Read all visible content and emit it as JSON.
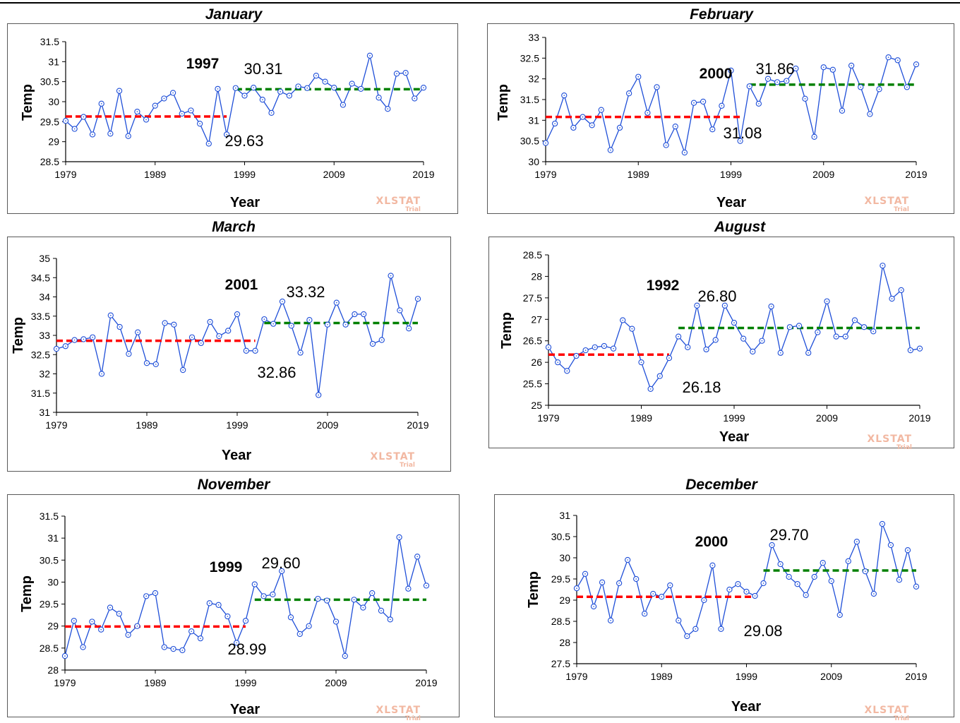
{
  "watermark": {
    "brand": "XLSTAT",
    "sub": "Trial"
  },
  "charts": [
    {
      "title": "January",
      "xlabel": "Year",
      "ylabel": "Temp",
      "xticks": [
        "1979",
        "1989",
        "1999",
        "2009",
        "2019"
      ],
      "yticks": [
        "28.5",
        "29",
        "29.5",
        "30",
        "30.5",
        "31",
        "31.5"
      ],
      "ylim": [
        28.5,
        31.5
      ],
      "change_year": "1997",
      "before_mean": 29.63,
      "after_mean": 30.31,
      "before_mean_label": "29.63",
      "after_mean_label": "30.31",
      "before_span": [
        1979,
        1997
      ],
      "after_span": [
        1998,
        2019
      ],
      "values": [
        29.52,
        29.32,
        29.62,
        29.18,
        29.95,
        29.2,
        30.27,
        29.14,
        29.75,
        29.55,
        29.9,
        30.08,
        30.22,
        29.7,
        29.78,
        29.45,
        28.95,
        30.32,
        29.18,
        30.34,
        30.15,
        30.35,
        30.05,
        29.72,
        30.25,
        30.15,
        30.38,
        30.34,
        30.65,
        30.5,
        30.35,
        29.92,
        30.45,
        30.32,
        31.15,
        30.1,
        29.82,
        30.7,
        30.72,
        30.08,
        30.35
      ]
    },
    {
      "title": "February",
      "xlabel": "Year",
      "ylabel": "Temp",
      "xticks": [
        "1979",
        "1989",
        "1999",
        "2009",
        "2019"
      ],
      "yticks": [
        "30",
        "30.5",
        "31",
        "31.5",
        "32",
        "32.5",
        "33"
      ],
      "ylim": [
        30,
        33
      ],
      "change_year": "2000",
      "before_mean": 31.08,
      "after_mean": 31.86,
      "before_mean_label": "31.08",
      "after_mean_label": "31.86",
      "before_span": [
        1979,
        2000
      ],
      "after_span": [
        2001,
        2019
      ],
      "values": [
        30.45,
        30.92,
        31.6,
        30.82,
        31.08,
        30.88,
        31.25,
        30.28,
        30.82,
        31.65,
        32.05,
        31.18,
        31.8,
        30.4,
        30.85,
        30.22,
        31.42,
        31.45,
        30.78,
        31.35,
        32.2,
        30.5,
        31.82,
        31.4,
        32.0,
        31.92,
        31.95,
        32.25,
        31.52,
        30.6,
        32.28,
        32.22,
        31.23,
        32.32,
        31.8,
        31.15,
        31.75,
        32.52,
        32.45,
        31.8,
        32.35
      ]
    },
    {
      "title": "March",
      "xlabel": "Year",
      "ylabel": "Temp",
      "xticks": [
        "1979",
        "1989",
        "1999",
        "2009",
        "2019"
      ],
      "yticks": [
        "31",
        "31.5",
        "32",
        "32.5",
        "33",
        "33.5",
        "34",
        "34.5",
        "35"
      ],
      "ylim": [
        31,
        35
      ],
      "change_year": "2001",
      "before_mean": 32.86,
      "after_mean": 33.32,
      "before_mean_label": "32.86",
      "after_mean_label": "33.32",
      "before_span": [
        1979,
        2001
      ],
      "after_span": [
        2002,
        2019
      ],
      "values": [
        32.65,
        32.72,
        32.88,
        32.9,
        32.95,
        32.0,
        33.52,
        33.22,
        32.52,
        33.08,
        32.28,
        32.25,
        33.32,
        33.28,
        32.1,
        32.95,
        32.8,
        33.35,
        32.98,
        33.12,
        33.55,
        32.6,
        32.6,
        33.42,
        33.3,
        33.88,
        33.25,
        32.55,
        33.4,
        31.45,
        33.28,
        33.85,
        33.28,
        33.55,
        33.55,
        32.78,
        32.88,
        34.55,
        33.65,
        33.18,
        33.95
      ]
    },
    {
      "title": "August",
      "xlabel": "Year",
      "ylabel": "Temp",
      "xticks": [
        "1979",
        "1989",
        "1999",
        "2009",
        "2019"
      ],
      "yticks": [
        "25",
        "25.5",
        "26",
        "26.5",
        "27",
        "27.5",
        "28",
        "28.5"
      ],
      "ylim": [
        25,
        28.5
      ],
      "change_year": "1992",
      "before_mean": 26.18,
      "after_mean": 26.8,
      "before_mean_label": "26.18",
      "after_mean_label": "26.80",
      "before_span": [
        1979,
        1992
      ],
      "after_span": [
        1993,
        2019
      ],
      "values": [
        26.35,
        26.0,
        25.8,
        26.15,
        26.28,
        26.35,
        26.38,
        26.32,
        26.98,
        26.78,
        26.0,
        25.38,
        25.68,
        26.1,
        26.6,
        26.35,
        27.32,
        26.3,
        26.52,
        27.32,
        26.92,
        26.55,
        26.25,
        26.5,
        27.3,
        26.22,
        26.82,
        26.85,
        26.22,
        26.7,
        27.42,
        26.6,
        26.6,
        26.98,
        26.82,
        26.72,
        28.25,
        27.48,
        27.68,
        26.28,
        26.32
      ]
    },
    {
      "title": "November",
      "xlabel": "Year",
      "ylabel": "Temp",
      "xticks": [
        "1979",
        "1989",
        "1999",
        "2009",
        "2019"
      ],
      "yticks": [
        "28",
        "28.5",
        "29",
        "29.5",
        "30",
        "30.5",
        "31",
        "31.5"
      ],
      "ylim": [
        28,
        31.5
      ],
      "change_year": "1999",
      "before_mean": 28.99,
      "after_mean": 29.6,
      "before_mean_label": "28.99",
      "after_mean_label": "29.60",
      "before_span": [
        1979,
        1999
      ],
      "after_span": [
        2000,
        2019
      ],
      "values": [
        28.32,
        29.12,
        28.52,
        29.1,
        28.92,
        29.42,
        29.28,
        28.8,
        29.0,
        29.68,
        29.75,
        28.52,
        28.48,
        28.45,
        28.88,
        28.72,
        29.52,
        29.48,
        29.22,
        28.62,
        29.12,
        29.95,
        29.68,
        29.72,
        30.25,
        29.2,
        28.82,
        29.0,
        29.62,
        29.58,
        29.1,
        28.32,
        29.6,
        29.42,
        29.75,
        29.35,
        29.15,
        31.02,
        29.85,
        30.58,
        29.92
      ]
    },
    {
      "title": "December",
      "xlabel": "Year",
      "ylabel": "Temp",
      "xticks": [
        "1979",
        "1989",
        "1999",
        "2009",
        "2019"
      ],
      "yticks": [
        "27.5",
        "28",
        "28.5",
        "29",
        "29.5",
        "30",
        "30.5",
        "31"
      ],
      "ylim": [
        27.5,
        31
      ],
      "change_year": "2000",
      "before_mean": 29.08,
      "after_mean": 29.7,
      "before_mean_label": "29.08",
      "after_mean_label": "29.70",
      "before_span": [
        1979,
        2000
      ],
      "after_span": [
        2001,
        2019
      ],
      "values": [
        29.28,
        29.62,
        28.85,
        29.42,
        28.52,
        29.4,
        29.95,
        29.5,
        28.68,
        29.15,
        29.08,
        29.35,
        28.52,
        28.15,
        28.32,
        29.0,
        29.82,
        28.32,
        29.25,
        29.38,
        29.2,
        29.1,
        29.4,
        30.3,
        29.85,
        29.55,
        29.38,
        29.12,
        29.55,
        29.88,
        29.45,
        28.65,
        29.92,
        30.38,
        29.68,
        29.15,
        30.8,
        30.3,
        29.48,
        30.18,
        29.32
      ]
    }
  ]
}
